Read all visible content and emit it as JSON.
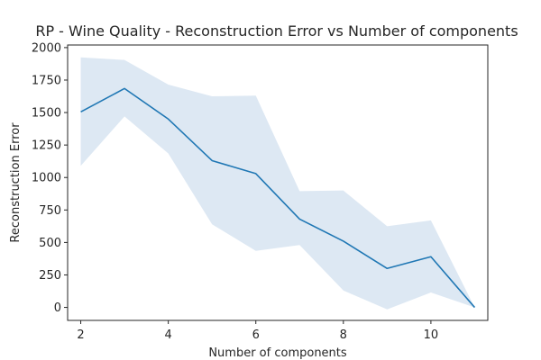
{
  "chart_data": {
    "type": "line",
    "title": "RP - Wine Quality - Reconstruction Error vs Number of components",
    "xlabel": "Number of components",
    "ylabel": "Reconstruction Error",
    "x": [
      2,
      3,
      4,
      5,
      6,
      7,
      8,
      9,
      10,
      11
    ],
    "series": [
      {
        "values": [
          1505,
          1685,
          1450,
          1130,
          1030,
          680,
          510,
          300,
          390,
          0
        ],
        "lower": [
          1090,
          1470,
          1185,
          640,
          435,
          480,
          130,
          -15,
          115,
          0
        ],
        "upper": [
          1925,
          1905,
          1715,
          1625,
          1630,
          895,
          900,
          625,
          670,
          0
        ],
        "color": "#1f77b4",
        "band_color": "#dde8f3"
      }
    ],
    "xlim": [
      1.7,
      11.3
    ],
    "ylim": [
      -100,
      2020
    ],
    "x_ticks": [
      2,
      4,
      6,
      8,
      10
    ],
    "y_ticks": [
      0,
      250,
      500,
      750,
      1000,
      1250,
      1500,
      1750,
      2000
    ],
    "grid": false,
    "legend": "none"
  }
}
